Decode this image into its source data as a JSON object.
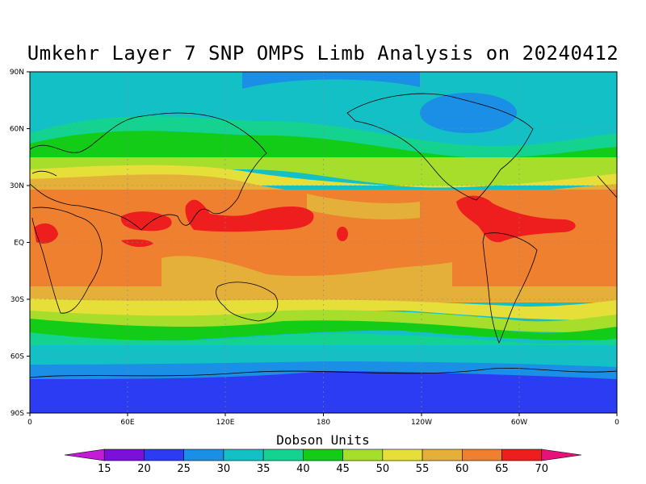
{
  "title": "Umkehr Layer 7 SNP OMPS Limb Analysis on 20240412",
  "lat_labels": [
    "90N",
    "60N",
    "30N",
    "EQ",
    "30S",
    "60S",
    "90S"
  ],
  "lon_labels": [
    "0",
    "60E",
    "120E",
    "180",
    "120W",
    "60W",
    "0"
  ],
  "colorbar": {
    "title": "Dobson Units",
    "ticks": [
      "15",
      "20",
      "25",
      "30",
      "35",
      "40",
      "45",
      "50",
      "55",
      "60",
      "65",
      "70"
    ],
    "colors": [
      "#c31bd7",
      "#7a10d9",
      "#2c3cf2",
      "#1b8ee6",
      "#13c0c6",
      "#14d28f",
      "#13cc17",
      "#a6de2b",
      "#e6df3a",
      "#e4b03a",
      "#ee8030",
      "#ee1e1e",
      "#e8117c"
    ]
  },
  "chart_data": {
    "type": "heatmap",
    "quantity": "Umkehr Layer 7 ozone",
    "units": "Dobson Units",
    "date": "20240412",
    "bands": [
      {
        "lat_range": [
          60,
          90
        ],
        "value_range": [
          25,
          35
        ]
      },
      {
        "lat_range": [
          40,
          60
        ],
        "value_range": [
          40,
          50
        ]
      },
      {
        "lat_range": [
          20,
          40
        ],
        "value_range": [
          50,
          60
        ]
      },
      {
        "lat_range": [
          -20,
          20
        ],
        "value_range": [
          60,
          70
        ]
      },
      {
        "lat_range": [
          -40,
          -20
        ],
        "value_range": [
          50,
          60
        ]
      },
      {
        "lat_range": [
          -60,
          -40
        ],
        "value_range": [
          35,
          45
        ]
      },
      {
        "lat_range": [
          -90,
          -60
        ],
        "value_range": [
          20,
          30
        ]
      }
    ],
    "xlim": [
      "0",
      "0"
    ],
    "ylim": [
      "90S",
      "90N"
    ]
  }
}
